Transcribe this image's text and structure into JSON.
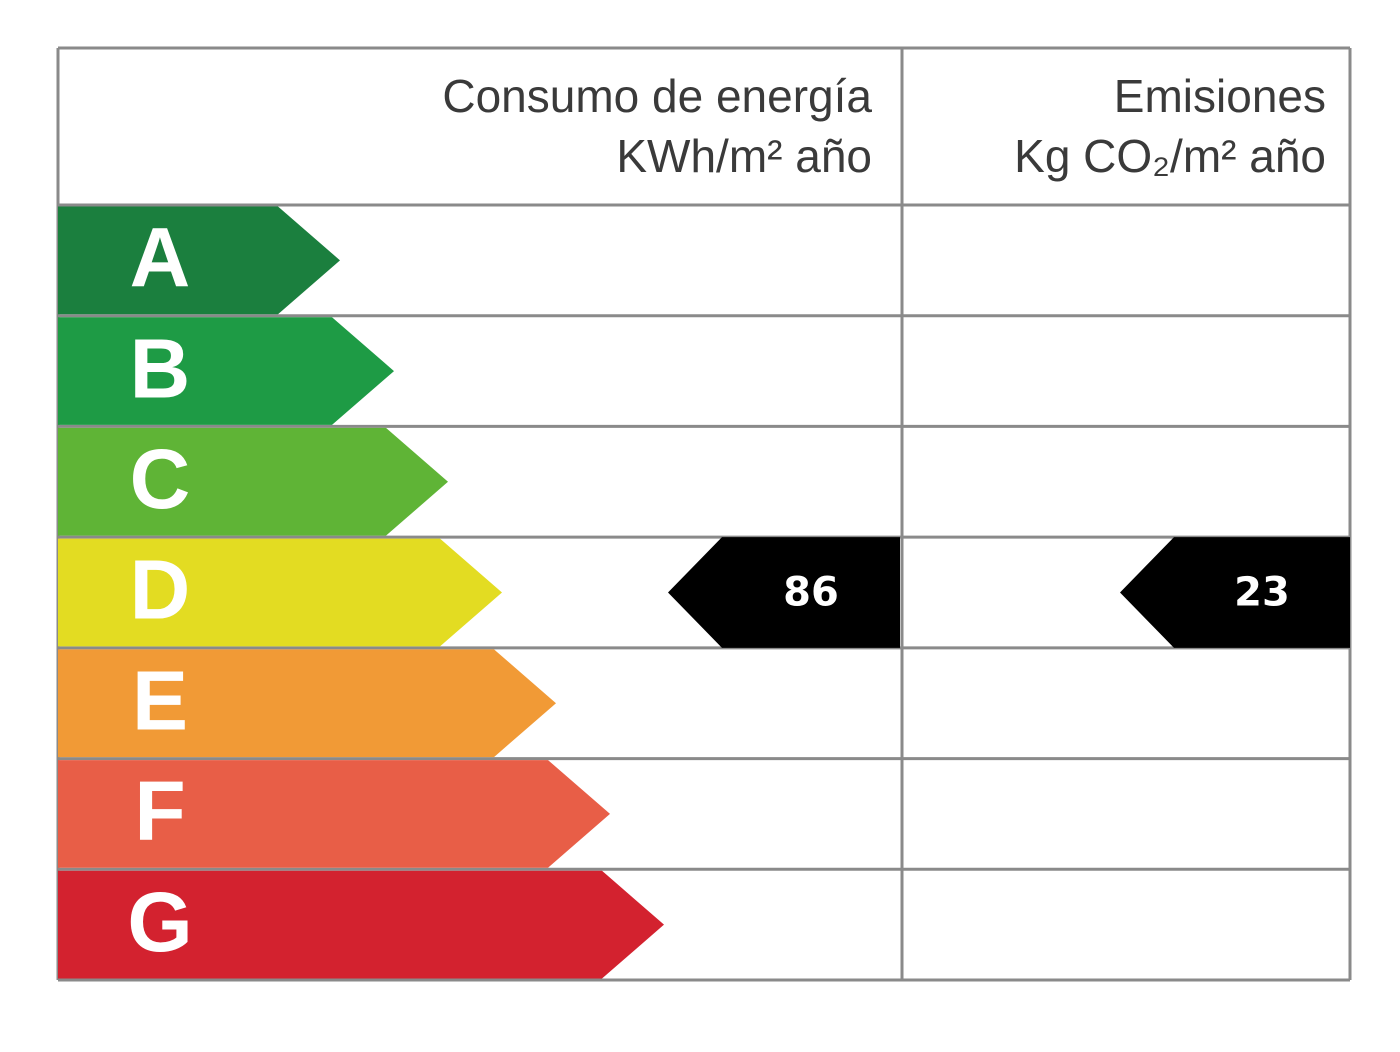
{
  "header": {
    "energy_title": "Consumo de energía",
    "energy_unit": "KWh/m² año",
    "emissions_title": "Emisiones",
    "emissions_unit": "Kg CO₂/m² año"
  },
  "classes": [
    {
      "label": "A",
      "color": "#1b7f3e"
    },
    {
      "label": "B",
      "color": "#1e9b45"
    },
    {
      "label": "C",
      "color": "#5fb436"
    },
    {
      "label": "D",
      "color": "#e3dc22"
    },
    {
      "label": "E",
      "color": "#f19a36"
    },
    {
      "label": "F",
      "color": "#e85e47"
    },
    {
      "label": "G",
      "color": "#d3222f"
    }
  ],
  "energy": {
    "value": 86,
    "class": "D"
  },
  "emissions": {
    "value": 23,
    "class": "D"
  }
}
